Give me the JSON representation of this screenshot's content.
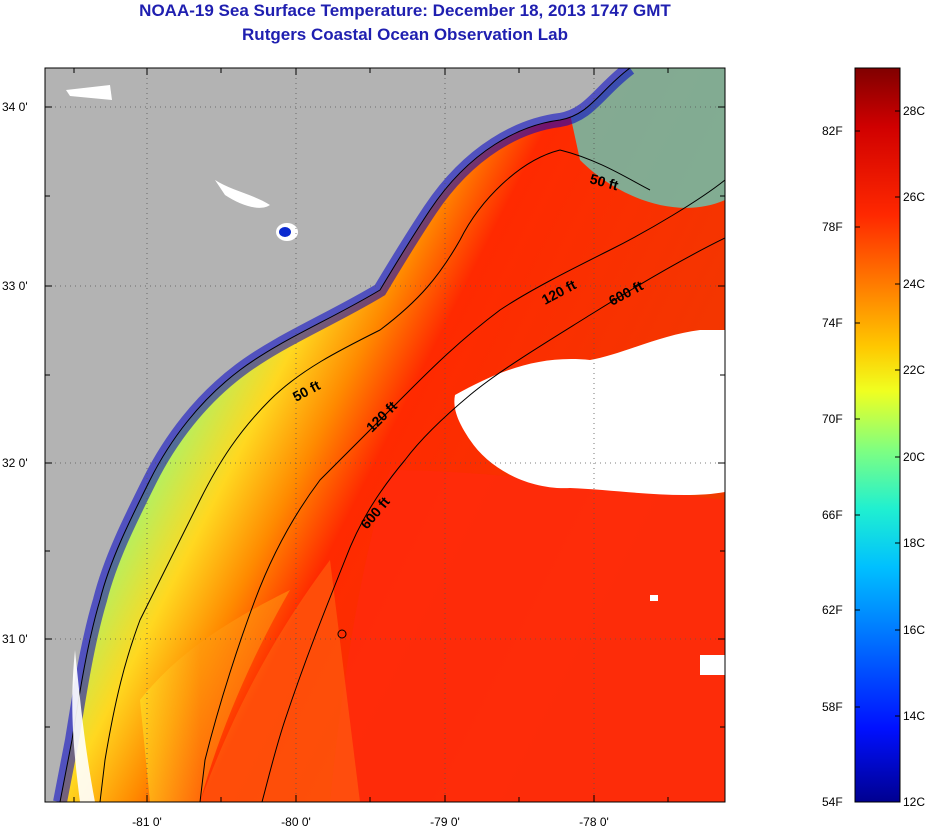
{
  "title": "NOAA-19 Sea Surface Temperature:  December 18, 2013 1747 GMT",
  "subtitle": "Rutgers Coastal Ocean Observation Lab",
  "lat_labels": [
    "34 0'",
    "33 0'",
    "32 0'",
    "31 0'"
  ],
  "lon_labels": [
    "-81 0'",
    "-80 0'",
    "-79 0'",
    "-78 0'"
  ],
  "contour_labels": [
    "50 ft",
    "120 ft",
    "600 ft",
    "50 ft",
    "120 ft",
    "600 ft"
  ],
  "colorbar": {
    "fahrenheit": [
      "82F",
      "78F",
      "74F",
      "70F",
      "66F",
      "62F",
      "58F",
      "54F"
    ],
    "celsius": [
      "28C",
      "26C",
      "24C",
      "22C",
      "20C",
      "18C",
      "16C",
      "14C",
      "12C"
    ],
    "range_c": [
      12,
      29
    ]
  },
  "colors": {
    "land": "#b3b3b3",
    "cloud": "#ffffff",
    "title": "#1f1fb0"
  }
}
